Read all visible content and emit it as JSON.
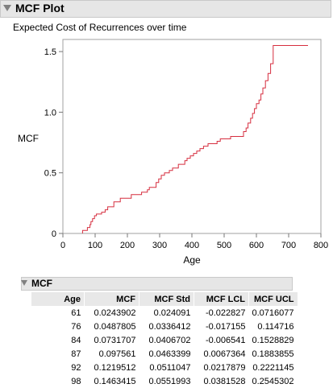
{
  "report": {
    "title": "MCF Plot",
    "subtitle": "Expected Cost of Recurrences over time"
  },
  "chart_data": {
    "type": "line",
    "step": true,
    "xlabel": "Age",
    "ylabel": "MCF",
    "xlim": [
      0,
      800
    ],
    "ylim": [
      0,
      1.6
    ],
    "xticks": [
      "0",
      "100",
      "200",
      "300",
      "400",
      "500",
      "600",
      "700",
      "800"
    ],
    "yticks": [
      "0",
      "0.5",
      "1.0",
      "1.5"
    ],
    "grid": false,
    "series": [
      {
        "color": "#d62e3f",
        "x": [
          61,
          76,
          84,
          87,
          92,
          98,
          104,
          120,
          131,
          139,
          158,
          178,
          210,
          212,
          244,
          262,
          268,
          289,
          297,
          305,
          315,
          330,
          340,
          358,
          378,
          385,
          395,
          405,
          415,
          425,
          436,
          450,
          466,
          478,
          488,
          520,
          560,
          568,
          574,
          582,
          588,
          594,
          600,
          608,
          614,
          620,
          628,
          636,
          644,
          652,
          760
        ],
        "y": [
          0.0244,
          0.0488,
          0.0732,
          0.0976,
          0.122,
          0.1463,
          0.16,
          0.175,
          0.195,
          0.22,
          0.26,
          0.29,
          0.29,
          0.32,
          0.34,
          0.36,
          0.38,
          0.42,
          0.45,
          0.48,
          0.5,
          0.52,
          0.54,
          0.57,
          0.6,
          0.62,
          0.64,
          0.66,
          0.68,
          0.7,
          0.72,
          0.74,
          0.74,
          0.76,
          0.78,
          0.8,
          0.84,
          0.87,
          0.91,
          0.95,
          0.99,
          1.03,
          1.07,
          1.1,
          1.15,
          1.2,
          1.26,
          1.32,
          1.4,
          1.55,
          1.55
        ]
      }
    ]
  },
  "table": {
    "title": "MCF",
    "columns": [
      "Age",
      "MCF",
      "MCF Std",
      "MCF LCL",
      "MCF UCL"
    ],
    "rows": [
      [
        "61",
        "0.0243902",
        "0.024091",
        "-0.022827",
        "0.0716077"
      ],
      [
        "76",
        "0.0487805",
        "0.0336412",
        "-0.017155",
        "0.114716"
      ],
      [
        "84",
        "0.0731707",
        "0.0406702",
        "-0.006541",
        "0.1528829"
      ],
      [
        "87",
        "0.097561",
        "0.0463399",
        "0.0067364",
        "0.1883855"
      ],
      [
        "92",
        "0.1219512",
        "0.0511047",
        "0.0217879",
        "0.2221145"
      ],
      [
        "98",
        "0.1463415",
        "0.0551993",
        "0.0381528",
        "0.2545302"
      ]
    ]
  }
}
